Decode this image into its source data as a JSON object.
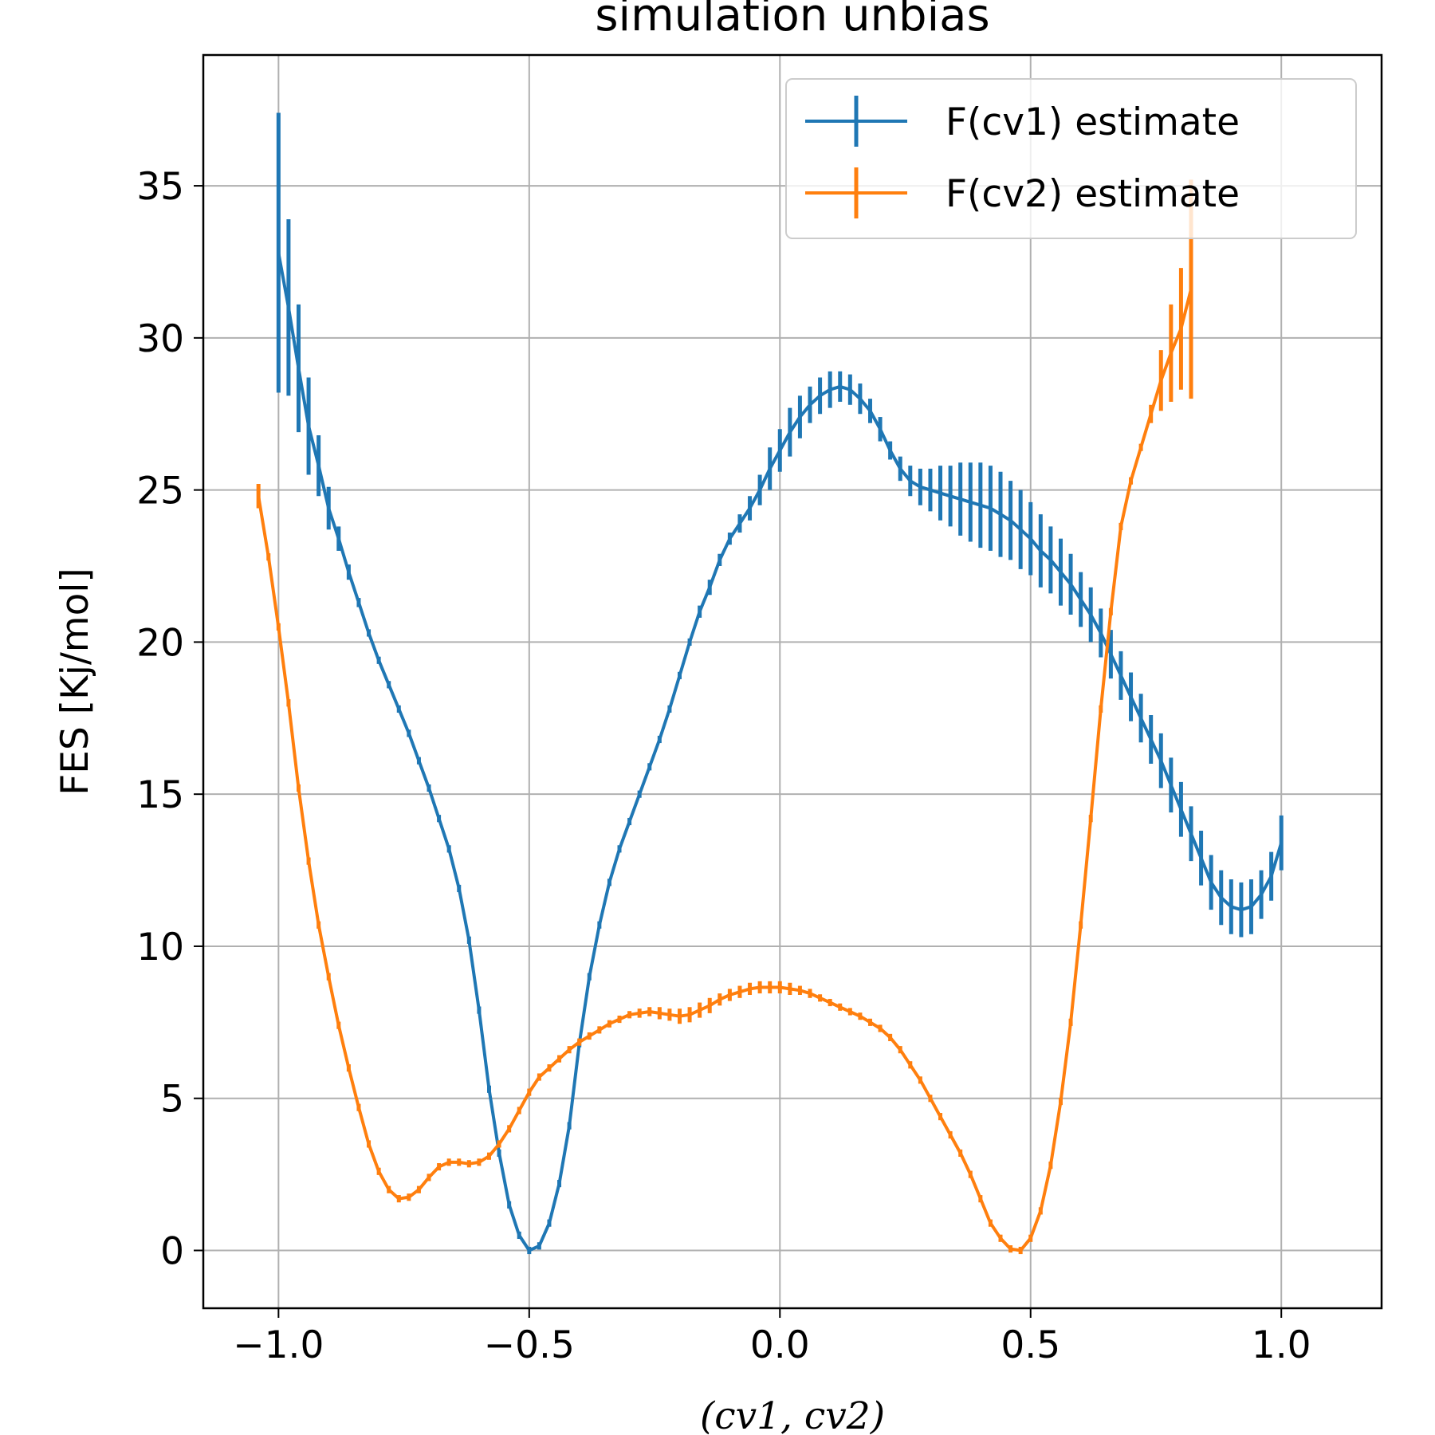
{
  "chart_data": {
    "type": "line",
    "title": "simulation unbias",
    "xlabel": "(cv1, cv2)",
    "ylabel": "FES [Kj/mol]",
    "xlim": [
      -1.15,
      1.2
    ],
    "ylim": [
      -1.9,
      39.3
    ],
    "xticks": [
      -1.0,
      -0.5,
      0.0,
      0.5,
      1.0
    ],
    "xtick_labels": [
      "−1.0",
      "−0.5",
      "0.0",
      "0.5",
      "1.0"
    ],
    "yticks": [
      0,
      5,
      10,
      15,
      20,
      25,
      30,
      35
    ],
    "ytick_labels": [
      "0",
      "5",
      "10",
      "15",
      "20",
      "25",
      "30",
      "35"
    ],
    "grid": true,
    "legend_position": "top-right",
    "series": [
      {
        "name": "F(cv1) estimate",
        "color": "#1f77b4",
        "error_bars": true,
        "points": [
          [
            -1.0,
            32.8,
            4.6
          ],
          [
            -0.98,
            31.0,
            2.9
          ],
          [
            -0.96,
            29.0,
            2.1
          ],
          [
            -0.94,
            27.1,
            1.6
          ],
          [
            -0.92,
            25.8,
            1.0
          ],
          [
            -0.9,
            24.4,
            0.7
          ],
          [
            -0.88,
            23.4,
            0.4
          ],
          [
            -0.86,
            22.3,
            0.25
          ],
          [
            -0.84,
            21.3,
            0.15
          ],
          [
            -0.82,
            20.3,
            0.05
          ],
          [
            -0.8,
            19.4,
            0.05
          ],
          [
            -0.78,
            18.6,
            0.05
          ],
          [
            -0.76,
            17.8,
            0.05
          ],
          [
            -0.74,
            17.0,
            0.05
          ],
          [
            -0.72,
            16.1,
            0.0
          ],
          [
            -0.7,
            15.2,
            0.0
          ],
          [
            -0.68,
            14.2,
            0.0
          ],
          [
            -0.66,
            13.2,
            0.0
          ],
          [
            -0.64,
            11.9,
            0.0
          ],
          [
            -0.62,
            10.2,
            0.0
          ],
          [
            -0.6,
            7.9,
            0.0
          ],
          [
            -0.58,
            5.3,
            0.0
          ],
          [
            -0.56,
            3.2,
            0.0
          ],
          [
            -0.54,
            1.5,
            0.0
          ],
          [
            -0.52,
            0.5,
            0.0
          ],
          [
            -0.5,
            0.0,
            0.0
          ],
          [
            -0.48,
            0.15,
            0.0
          ],
          [
            -0.46,
            0.9,
            0.0
          ],
          [
            -0.44,
            2.2,
            0.0
          ],
          [
            -0.42,
            4.1,
            0.0
          ],
          [
            -0.4,
            6.8,
            0.0
          ],
          [
            -0.38,
            9.0,
            0.0
          ],
          [
            -0.36,
            10.7,
            0.0
          ],
          [
            -0.34,
            12.1,
            0.0
          ],
          [
            -0.32,
            13.2,
            0.0
          ],
          [
            -0.3,
            14.1,
            0.0
          ],
          [
            -0.28,
            15.0,
            0.0
          ],
          [
            -0.26,
            15.9,
            0.0
          ],
          [
            -0.24,
            16.8,
            0.0
          ],
          [
            -0.22,
            17.8,
            0.05
          ],
          [
            -0.2,
            18.9,
            0.05
          ],
          [
            -0.18,
            20.0,
            0.1
          ],
          [
            -0.16,
            21.0,
            0.2
          ],
          [
            -0.14,
            21.8,
            0.25
          ],
          [
            -0.12,
            22.7,
            0.2
          ],
          [
            -0.1,
            23.4,
            0.2
          ],
          [
            -0.08,
            23.9,
            0.3
          ],
          [
            -0.06,
            24.4,
            0.4
          ],
          [
            -0.04,
            25.0,
            0.5
          ],
          [
            -0.02,
            25.7,
            0.7
          ],
          [
            0.0,
            26.3,
            0.7
          ],
          [
            0.02,
            26.9,
            0.8
          ],
          [
            0.04,
            27.4,
            0.7
          ],
          [
            0.06,
            27.8,
            0.6
          ],
          [
            0.08,
            28.1,
            0.6
          ],
          [
            0.1,
            28.3,
            0.6
          ],
          [
            0.12,
            28.4,
            0.5
          ],
          [
            0.14,
            28.3,
            0.5
          ],
          [
            0.16,
            28.0,
            0.5
          ],
          [
            0.18,
            27.6,
            0.4
          ],
          [
            0.2,
            27.0,
            0.4
          ],
          [
            0.22,
            26.3,
            0.3
          ],
          [
            0.24,
            25.7,
            0.4
          ],
          [
            0.26,
            25.3,
            0.5
          ],
          [
            0.28,
            25.1,
            0.6
          ],
          [
            0.3,
            25.0,
            0.7
          ],
          [
            0.32,
            24.9,
            0.9
          ],
          [
            0.34,
            24.8,
            1.0
          ],
          [
            0.36,
            24.7,
            1.2
          ],
          [
            0.38,
            24.6,
            1.3
          ],
          [
            0.4,
            24.5,
            1.4
          ],
          [
            0.42,
            24.4,
            1.4
          ],
          [
            0.44,
            24.2,
            1.4
          ],
          [
            0.46,
            24.0,
            1.3
          ],
          [
            0.48,
            23.7,
            1.3
          ],
          [
            0.5,
            23.4,
            1.2
          ],
          [
            0.52,
            23.0,
            1.2
          ],
          [
            0.54,
            22.7,
            1.1
          ],
          [
            0.56,
            22.3,
            1.1
          ],
          [
            0.58,
            21.9,
            1.0
          ],
          [
            0.6,
            21.4,
            0.9
          ],
          [
            0.62,
            20.9,
            0.9
          ],
          [
            0.64,
            20.3,
            0.8
          ],
          [
            0.66,
            19.6,
            0.8
          ],
          [
            0.68,
            18.9,
            0.8
          ],
          [
            0.7,
            18.2,
            0.8
          ],
          [
            0.72,
            17.5,
            0.8
          ],
          [
            0.74,
            16.8,
            0.8
          ],
          [
            0.76,
            16.1,
            0.9
          ],
          [
            0.78,
            15.3,
            0.9
          ],
          [
            0.8,
            14.5,
            0.9
          ],
          [
            0.82,
            13.7,
            0.9
          ],
          [
            0.84,
            12.9,
            0.9
          ],
          [
            0.86,
            12.1,
            0.9
          ],
          [
            0.88,
            11.6,
            0.9
          ],
          [
            0.9,
            11.3,
            0.9
          ],
          [
            0.92,
            11.2,
            0.9
          ],
          [
            0.94,
            11.3,
            0.9
          ],
          [
            0.96,
            11.7,
            0.8
          ],
          [
            0.98,
            12.3,
            0.8
          ],
          [
            1.0,
            13.4,
            0.9
          ]
        ]
      },
      {
        "name": "F(cv2) estimate",
        "color": "#ff7f0e",
        "error_bars": true,
        "points": [
          [
            -1.04,
            24.8,
            0.4
          ],
          [
            -1.02,
            22.8,
            0.0
          ],
          [
            -1.0,
            20.5,
            0.0
          ],
          [
            -0.98,
            18.0,
            0.0
          ],
          [
            -0.96,
            15.2,
            0.0
          ],
          [
            -0.94,
            12.8,
            0.0
          ],
          [
            -0.92,
            10.7,
            0.0
          ],
          [
            -0.9,
            9.0,
            0.0
          ],
          [
            -0.88,
            7.4,
            0.0
          ],
          [
            -0.86,
            6.0,
            0.0
          ],
          [
            -0.84,
            4.7,
            0.0
          ],
          [
            -0.82,
            3.5,
            0.0
          ],
          [
            -0.8,
            2.6,
            0.0
          ],
          [
            -0.78,
            2.0,
            0.0
          ],
          [
            -0.76,
            1.7,
            0.0
          ],
          [
            -0.74,
            1.75,
            0.0
          ],
          [
            -0.72,
            2.0,
            0.0
          ],
          [
            -0.7,
            2.4,
            0.0
          ],
          [
            -0.68,
            2.75,
            0.0
          ],
          [
            -0.66,
            2.9,
            0.0
          ],
          [
            -0.64,
            2.9,
            0.0
          ],
          [
            -0.62,
            2.85,
            0.0
          ],
          [
            -0.6,
            2.9,
            0.0
          ],
          [
            -0.58,
            3.1,
            0.0
          ],
          [
            -0.56,
            3.5,
            0.0
          ],
          [
            -0.54,
            4.0,
            0.0
          ],
          [
            -0.52,
            4.6,
            0.0
          ],
          [
            -0.5,
            5.2,
            0.0
          ],
          [
            -0.48,
            5.7,
            0.0
          ],
          [
            -0.46,
            6.0,
            0.0
          ],
          [
            -0.44,
            6.3,
            0.0
          ],
          [
            -0.42,
            6.6,
            0.0
          ],
          [
            -0.4,
            6.85,
            0.0
          ],
          [
            -0.38,
            7.05,
            0.0
          ],
          [
            -0.36,
            7.25,
            0.0
          ],
          [
            -0.34,
            7.45,
            0.0
          ],
          [
            -0.32,
            7.6,
            0.05
          ],
          [
            -0.3,
            7.75,
            0.1
          ],
          [
            -0.28,
            7.8,
            0.15
          ],
          [
            -0.26,
            7.85,
            0.15
          ],
          [
            -0.24,
            7.8,
            0.2
          ],
          [
            -0.22,
            7.75,
            0.2
          ],
          [
            -0.2,
            7.7,
            0.25
          ],
          [
            -0.18,
            7.75,
            0.25
          ],
          [
            -0.16,
            7.9,
            0.25
          ],
          [
            -0.14,
            8.05,
            0.25
          ],
          [
            -0.12,
            8.25,
            0.2
          ],
          [
            -0.1,
            8.4,
            0.2
          ],
          [
            -0.08,
            8.5,
            0.2
          ],
          [
            -0.06,
            8.6,
            0.2
          ],
          [
            -0.04,
            8.65,
            0.2
          ],
          [
            -0.02,
            8.65,
            0.2
          ],
          [
            0.0,
            8.65,
            0.2
          ],
          [
            0.02,
            8.6,
            0.2
          ],
          [
            0.04,
            8.55,
            0.15
          ],
          [
            0.06,
            8.45,
            0.15
          ],
          [
            0.08,
            8.3,
            0.1
          ],
          [
            0.1,
            8.15,
            0.1
          ],
          [
            0.12,
            8.0,
            0.05
          ],
          [
            0.14,
            7.85,
            0.05
          ],
          [
            0.16,
            7.7,
            0.0
          ],
          [
            0.18,
            7.5,
            0.0
          ],
          [
            0.2,
            7.3,
            0.0
          ],
          [
            0.22,
            7.0,
            0.0
          ],
          [
            0.24,
            6.6,
            0.0
          ],
          [
            0.26,
            6.1,
            0.0
          ],
          [
            0.28,
            5.6,
            0.0
          ],
          [
            0.3,
            5.0,
            0.0
          ],
          [
            0.32,
            4.4,
            0.0
          ],
          [
            0.34,
            3.8,
            0.0
          ],
          [
            0.36,
            3.2,
            0.0
          ],
          [
            0.38,
            2.5,
            0.0
          ],
          [
            0.4,
            1.7,
            0.0
          ],
          [
            0.42,
            0.9,
            0.0
          ],
          [
            0.44,
            0.4,
            0.0
          ],
          [
            0.46,
            0.05,
            0.0
          ],
          [
            0.48,
            0.0,
            0.0
          ],
          [
            0.5,
            0.4,
            0.0
          ],
          [
            0.52,
            1.3,
            0.0
          ],
          [
            0.54,
            2.8,
            0.0
          ],
          [
            0.56,
            4.9,
            0.0
          ],
          [
            0.58,
            7.5,
            0.0
          ],
          [
            0.6,
            10.7,
            0.0
          ],
          [
            0.62,
            14.2,
            0.0
          ],
          [
            0.64,
            17.8,
            0.0
          ],
          [
            0.66,
            21.0,
            0.0
          ],
          [
            0.68,
            23.8,
            0.0
          ],
          [
            0.7,
            25.3,
            0.0
          ],
          [
            0.72,
            26.4,
            0.0
          ],
          [
            0.74,
            27.5,
            0.3
          ],
          [
            0.76,
            28.6,
            1.0
          ],
          [
            0.78,
            29.5,
            1.6
          ],
          [
            0.8,
            30.3,
            2.0
          ],
          [
            0.82,
            31.6,
            3.6
          ]
        ]
      }
    ]
  }
}
